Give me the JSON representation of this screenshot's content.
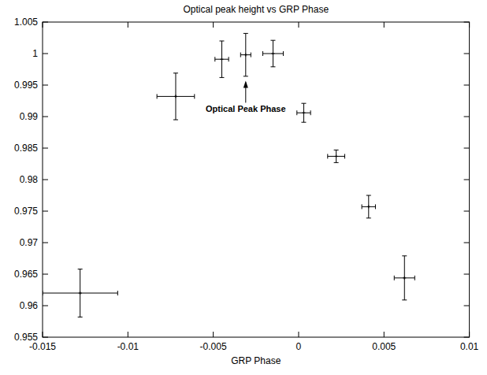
{
  "chart_data": {
    "type": "scatter",
    "title": "Optical peak height vs GRP Phase",
    "x_label": "GRP Phase",
    "x": [
      -0.0128,
      -0.0072,
      -0.0045,
      -0.0031,
      -0.0015,
      0.0003,
      0.0022,
      0.0041,
      0.0062
    ],
    "x_errors": [
      0.0022,
      0.0011,
      0.0004,
      0.0003,
      0.0006,
      0.0004,
      0.0005,
      0.0004,
      0.0006
    ],
    "values": [
      0.962,
      0.9932,
      0.9991,
      0.9998,
      1.0,
      0.9906,
      0.9837,
      0.9757,
      0.9644
    ],
    "y_errors": [
      0.0038,
      0.0037,
      0.0029,
      0.0034,
      0.0021,
      0.0015,
      0.001,
      0.0018,
      0.0035
    ],
    "color": "#000000",
    "marker": "plus",
    "annotations": [
      {
        "text": "Optical Peak Phase",
        "x": -0.0031,
        "y": 0.9957
      }
    ],
    "xlim": [
      -0.015,
      0.01
    ],
    "xticks": [
      -0.015,
      -0.01,
      -0.005,
      0,
      0.005,
      0.01
    ],
    "ylim": [
      0.955,
      1.005
    ],
    "yticks": [
      0.955,
      0.96,
      0.965,
      0.97,
      0.975,
      0.98,
      0.985,
      0.99,
      0.995,
      1,
      1.005
    ],
    "grid": false
  }
}
